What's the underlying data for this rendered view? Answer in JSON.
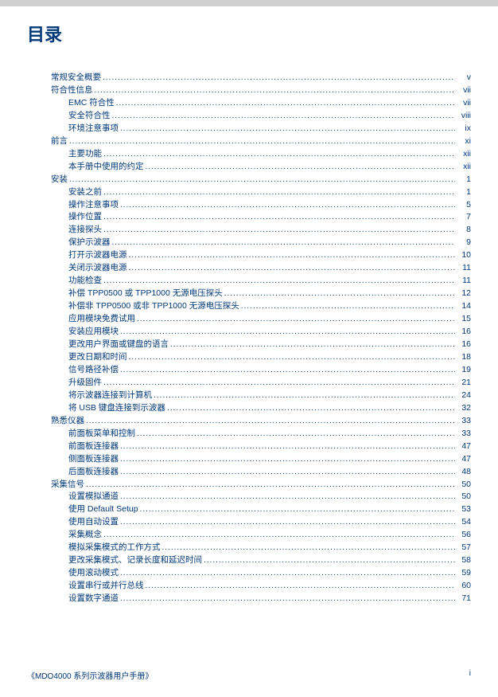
{
  "title": "目录",
  "footer": {
    "left": "《MDO4000 系列示波器用户手册》",
    "right": "i"
  },
  "toc": [
    {
      "label": "常规安全概要",
      "page": "v",
      "indent": 0
    },
    {
      "label": "符合性信息",
      "page": "vii",
      "indent": 0
    },
    {
      "label": "EMC 符合性",
      "page": "vii",
      "indent": 1
    },
    {
      "label": "安全符合性",
      "page": "viii",
      "indent": 1
    },
    {
      "label": "环境注意事项",
      "page": "ix",
      "indent": 1
    },
    {
      "label": "前言",
      "page": "xi",
      "indent": 0
    },
    {
      "label": "主要功能",
      "page": "xii",
      "indent": 1
    },
    {
      "label": "本手册中使用的约定",
      "page": "xii",
      "indent": 1
    },
    {
      "label": "安装",
      "page": "1",
      "indent": 0
    },
    {
      "label": "安装之前",
      "page": "1",
      "indent": 1
    },
    {
      "label": "操作注意事项",
      "page": "5",
      "indent": 1
    },
    {
      "label": "操作位置",
      "page": "7",
      "indent": 1
    },
    {
      "label": "连接探头",
      "page": "8",
      "indent": 1
    },
    {
      "label": "保护示波器",
      "page": "9",
      "indent": 1
    },
    {
      "label": "打开示波器电源",
      "page": "10",
      "indent": 1
    },
    {
      "label": "关闭示波器电源",
      "page": "11",
      "indent": 1
    },
    {
      "label": "功能检查",
      "page": "11",
      "indent": 1
    },
    {
      "label": "补偿 TPP0500 或 TPP1000 无源电压探头",
      "page": "12",
      "indent": 1
    },
    {
      "label": "补偿非 TPP0500 或非 TPP1000 无源电压探头",
      "page": "14",
      "indent": 1
    },
    {
      "label": "应用模块免费试用",
      "page": "15",
      "indent": 1
    },
    {
      "label": "安装应用模块",
      "page": "16",
      "indent": 1
    },
    {
      "label": "更改用户界面或键盘的语言",
      "page": "16",
      "indent": 1
    },
    {
      "label": "更改日期和时间",
      "page": "18",
      "indent": 1
    },
    {
      "label": "信号路径补偿",
      "page": "19",
      "indent": 1
    },
    {
      "label": "升级固件",
      "page": "21",
      "indent": 1
    },
    {
      "label": "将示波器连接到计算机",
      "page": "24",
      "indent": 1
    },
    {
      "label": "将 USB 键盘连接到示波器",
      "page": "32",
      "indent": 1
    },
    {
      "label": "熟悉仪器",
      "page": "33",
      "indent": 0
    },
    {
      "label": "前面板菜单和控制",
      "page": "33",
      "indent": 1
    },
    {
      "label": "前面板连接器",
      "page": "47",
      "indent": 1
    },
    {
      "label": "侧面板连接器",
      "page": "47",
      "indent": 1
    },
    {
      "label": "后面板连接器",
      "page": "48",
      "indent": 1
    },
    {
      "label": "采集信号",
      "page": "50",
      "indent": 0
    },
    {
      "label": "设置模拟通道",
      "page": "50",
      "indent": 1
    },
    {
      "label": "使用 Default Setup",
      "page": "53",
      "indent": 1
    },
    {
      "label": "使用自动设置",
      "page": "54",
      "indent": 1
    },
    {
      "label": "采集概念",
      "page": "56",
      "indent": 1
    },
    {
      "label": "模拟采集模式的工作方式",
      "page": "57",
      "indent": 1
    },
    {
      "label": "更改采集模式、记录长度和延迟时间",
      "page": "58",
      "indent": 1
    },
    {
      "label": "使用滚动模式",
      "page": "59",
      "indent": 1
    },
    {
      "label": "设置串行或并行总线",
      "page": "60",
      "indent": 1
    },
    {
      "label": "设置数字通道",
      "page": "71",
      "indent": 1
    }
  ]
}
